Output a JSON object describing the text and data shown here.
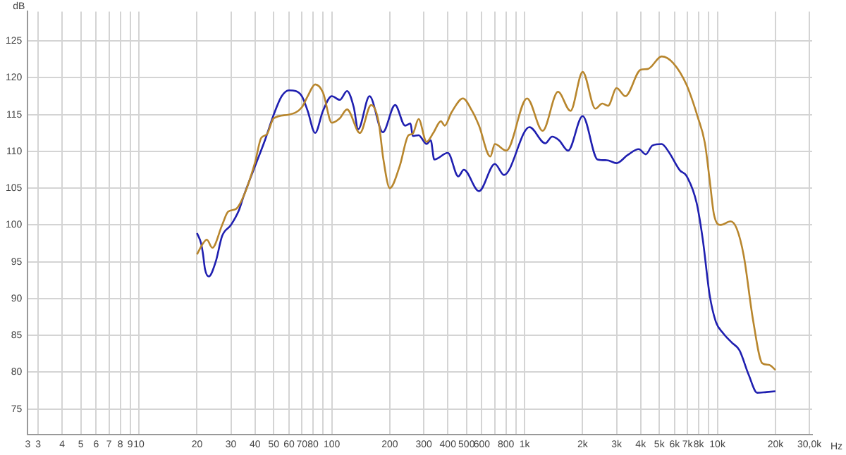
{
  "chart_data": {
    "type": "line",
    "xlabel": "Hz",
    "ylabel": "dB",
    "log": "x",
    "grid": true,
    "legend": false,
    "marker": "none",
    "line_style": "solid",
    "xlim": [
      2.65,
      31000
    ],
    "ylim": [
      71.5,
      129
    ],
    "xticks": [
      {
        "value": 2.65,
        "label": "3"
      },
      3,
      4,
      5,
      6,
      7,
      8,
      9,
      10,
      20,
      30,
      40,
      50,
      60,
      70,
      80,
      {
        "value": 90,
        "label": null
      },
      100,
      200,
      300,
      400,
      500,
      600,
      {
        "value": 700,
        "label": null
      },
      800,
      {
        "value": 900,
        "label": null
      },
      {
        "value": 1000,
        "label": "1k"
      },
      {
        "value": 2000,
        "label": "2k"
      },
      {
        "value": 3000,
        "label": "3k"
      },
      {
        "value": 4000,
        "label": "4k"
      },
      {
        "value": 5000,
        "label": "5k"
      },
      {
        "value": 6000,
        "label": "6k"
      },
      {
        "value": 7000,
        "label": "7k"
      },
      {
        "value": 8000,
        "label": "8k"
      },
      {
        "value": 9000,
        "label": null
      },
      {
        "value": 10000,
        "label": "10k"
      },
      {
        "value": 20000,
        "label": "20k"
      },
      {
        "value": 30000,
        "label": "30,0k"
      }
    ],
    "yticks": [
      75,
      80,
      85,
      90,
      95,
      100,
      105,
      110,
      115,
      120,
      125
    ],
    "series": [
      {
        "color": "#b8862d",
        "x": [
          20,
          21.5,
          22.5,
          24,
          27,
          29,
          32,
          35,
          40,
          43,
          46,
          50,
          60,
          70,
          75,
          82,
          90,
          100,
          110,
          120,
          140,
          160,
          175,
          185,
          200,
          225,
          250,
          263,
          282,
          310,
          336,
          368,
          385,
          418,
          479,
          534,
          580,
          664,
          701,
          804,
          1030,
          1240,
          1490,
          1730,
          2000,
          2330,
          2530,
          2710,
          3000,
          3330,
          4000,
          4360,
          5140,
          5900,
          6900,
          7900,
          8600,
          9100,
          9600,
          10400,
          11700,
          12600,
          13700,
          15300,
          17100,
          18500,
          20000
        ],
        "values": [
          96,
          97.5,
          98,
          96.9,
          100,
          101.8,
          102.2,
          104,
          108.5,
          111.8,
          112.3,
          114.5,
          115,
          116,
          117.5,
          119.1,
          118,
          113.9,
          114.5,
          115.7,
          112.5,
          116.3,
          114,
          109,
          105,
          108,
          112.2,
          112.4,
          114.4,
          111.3,
          112.5,
          114.1,
          113.5,
          115.3,
          117.2,
          115.5,
          113.5,
          109.3,
          111,
          110.1,
          117.2,
          112.8,
          118.1,
          115.5,
          120.8,
          115.8,
          116.5,
          116.2,
          118.6,
          117.5,
          121.1,
          121.2,
          122.9,
          122,
          119.1,
          114.7,
          111.2,
          106.3,
          101.4,
          100,
          100.5,
          99.5,
          95.8,
          87.1,
          81.2,
          81,
          80.3
        ]
      },
      {
        "color": "#1f1fb0",
        "x": [
          20,
          21,
          21.5,
          22,
          23,
          25,
          27,
          30,
          33,
          35,
          40,
          45,
          50,
          55,
          60,
          65,
          70,
          75,
          82,
          90,
          100,
          110,
          120,
          130,
          137,
          157,
          184,
          213,
          240,
          256,
          263,
          282,
          310,
          326,
          340,
          400,
          453,
          484,
          580,
          701,
          782,
          1060,
          1280,
          1390,
          1510,
          1680,
          2000,
          2390,
          2670,
          3000,
          3420,
          3910,
          4250,
          4600,
          5140,
          5570,
          6400,
          6900,
          7800,
          8400,
          9100,
          9800,
          10700,
          11900,
          13000,
          14500,
          16100,
          18000,
          20000
        ],
        "values": [
          98.9,
          97.5,
          96,
          94,
          93,
          95,
          98.5,
          100,
          102,
          104,
          108,
          111.5,
          115,
          117.5,
          118.3,
          118.2,
          117.5,
          115.5,
          112.5,
          115.5,
          117.5,
          117,
          118.2,
          116,
          113,
          117.5,
          112.6,
          116.3,
          113.5,
          113.8,
          112.1,
          112.2,
          111,
          111.5,
          108.9,
          109.8,
          106.6,
          107.5,
          104.6,
          108.3,
          106.8,
          113.3,
          111.1,
          112,
          111.5,
          110.1,
          114.8,
          108.9,
          108.8,
          108.4,
          109.5,
          110.3,
          109.6,
          110.8,
          111,
          110,
          107.4,
          106.7,
          103,
          98,
          90.6,
          86.9,
          85.3,
          84,
          83,
          79.7,
          77.2,
          77.3,
          77.4
        ]
      }
    ]
  }
}
